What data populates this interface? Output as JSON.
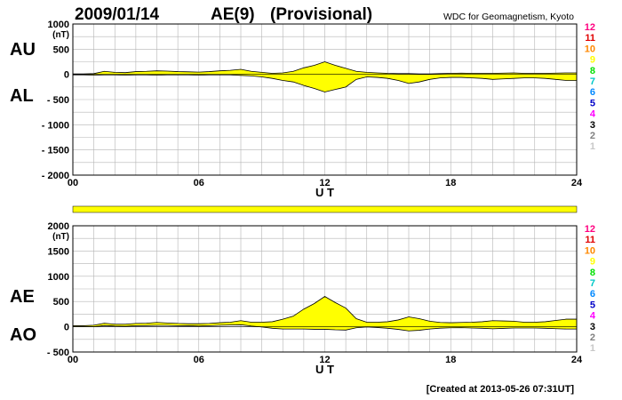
{
  "header": {
    "date": "2009/01/14",
    "index": "AE(9)",
    "status": "(Provisional)",
    "source": "WDC for Geomagnetism, Kyoto"
  },
  "footer": {
    "created": "[Created at 2013-05-26 07:31UT]"
  },
  "colors": {
    "fill": "#ffff00",
    "grid": "#b4b4b4",
    "line": "#000000",
    "stations_bar": "#ffff00"
  },
  "station_colors": [
    "#c8c8c8",
    "#808080",
    "#000000",
    "#ff00ff",
    "#0000c8",
    "#0088ff",
    "#00c8c8",
    "#00e000",
    "#ffff00",
    "#ff8800",
    "#e00000",
    "#ff0080"
  ],
  "station_labels": [
    "1",
    "2",
    "3",
    "4",
    "5",
    "6",
    "7",
    "8",
    "9",
    "10",
    "11",
    "12"
  ],
  "chart_data": [
    {
      "type": "area",
      "id": "au-al",
      "labels": [
        "AU",
        "AL"
      ],
      "yunit": "(nT)",
      "xlabel": "U T",
      "xlim": [
        0,
        24
      ],
      "ylim": [
        -2000,
        1000
      ],
      "xticks": [
        0,
        6,
        12,
        18,
        24
      ],
      "xtick_labels": [
        "00",
        "06",
        "12",
        "18",
        "24"
      ],
      "yticks": [
        1000,
        500,
        0,
        -500,
        -1000,
        -1500,
        -2000
      ],
      "ytick_labels": [
        "1000",
        "500",
        "0",
        "- 500",
        "- 1000",
        "- 1500",
        "- 2000"
      ],
      "grid": true,
      "x": [
        0,
        0.5,
        1,
        1.5,
        2,
        2.5,
        3,
        3.5,
        4,
        4.5,
        5,
        5.5,
        6,
        6.5,
        7,
        7.5,
        8,
        8.5,
        9,
        9.5,
        10,
        10.5,
        11,
        11.5,
        12,
        12.5,
        13,
        13.5,
        14,
        14.5,
        15,
        15.5,
        16,
        16.5,
        17,
        17.5,
        18,
        18.5,
        19,
        19.5,
        20,
        20.5,
        21,
        21.5,
        22,
        22.5,
        23,
        23.5,
        24
      ],
      "series": [
        {
          "name": "AU",
          "values": [
            10,
            10,
            15,
            60,
            40,
            35,
            55,
            60,
            70,
            65,
            55,
            50,
            45,
            55,
            70,
            80,
            100,
            60,
            40,
            20,
            30,
            60,
            130,
            180,
            250,
            180,
            120,
            60,
            40,
            30,
            20,
            15,
            15,
            10,
            10,
            15,
            20,
            25,
            20,
            20,
            20,
            25,
            30,
            20,
            20,
            20,
            25,
            30,
            30
          ]
        },
        {
          "name": "AL",
          "values": [
            -10,
            -10,
            -15,
            -10,
            -10,
            -15,
            -10,
            -10,
            -15,
            -10,
            -10,
            -10,
            -15,
            -10,
            -10,
            -10,
            -20,
            -30,
            -50,
            -80,
            -120,
            -150,
            -220,
            -280,
            -350,
            -300,
            -250,
            -100,
            -50,
            -60,
            -80,
            -120,
            -180,
            -150,
            -100,
            -70,
            -60,
            -60,
            -70,
            -80,
            -100,
            -90,
            -80,
            -70,
            -70,
            -80,
            -100,
            -120,
            -120
          ]
        }
      ]
    },
    {
      "type": "area",
      "id": "ae-ao",
      "labels": [
        "AE",
        "AO"
      ],
      "yunit": "(nT)",
      "xlabel": "U T",
      "xlim": [
        0,
        24
      ],
      "ylim": [
        -500,
        2000
      ],
      "xticks": [
        0,
        6,
        12,
        18,
        24
      ],
      "xtick_labels": [
        "00",
        "06",
        "12",
        "18",
        "24"
      ],
      "yticks": [
        2000,
        1500,
        1000,
        500,
        0,
        -500
      ],
      "ytick_labels": [
        "2000",
        "1500",
        "1000",
        "500",
        "0",
        "- 500"
      ],
      "grid": true,
      "x": [
        0,
        0.5,
        1,
        1.5,
        2,
        2.5,
        3,
        3.5,
        4,
        4.5,
        5,
        5.5,
        6,
        6.5,
        7,
        7.5,
        8,
        8.5,
        9,
        9.5,
        10,
        10.5,
        11,
        11.5,
        12,
        12.5,
        13,
        13.5,
        14,
        14.5,
        15,
        15.5,
        16,
        16.5,
        17,
        17.5,
        18,
        18.5,
        19,
        19.5,
        20,
        20.5,
        21,
        21.5,
        22,
        22.5,
        23,
        23.5,
        24
      ],
      "series": [
        {
          "name": "AE",
          "values": [
            20,
            20,
            30,
            70,
            50,
            50,
            65,
            70,
            85,
            75,
            65,
            60,
            60,
            65,
            80,
            90,
            120,
            90,
            90,
            100,
            150,
            210,
            350,
            460,
            600,
            480,
            370,
            160,
            90,
            90,
            100,
            135,
            195,
            160,
            110,
            85,
            80,
            85,
            90,
            100,
            120,
            115,
            110,
            90,
            90,
            100,
            125,
            150,
            150
          ]
        },
        {
          "name": "AO",
          "values": [
            0,
            0,
            0,
            25,
            15,
            10,
            22,
            25,
            28,
            28,
            22,
            20,
            15,
            22,
            30,
            35,
            40,
            15,
            -5,
            -30,
            -45,
            -45,
            -45,
            -50,
            -50,
            -60,
            -65,
            -20,
            -5,
            -15,
            -30,
            -52,
            -82,
            -70,
            -45,
            -28,
            -20,
            -18,
            -25,
            -30,
            -40,
            -32,
            -25,
            -25,
            -25,
            -30,
            -38,
            -45,
            -45
          ]
        }
      ]
    }
  ]
}
